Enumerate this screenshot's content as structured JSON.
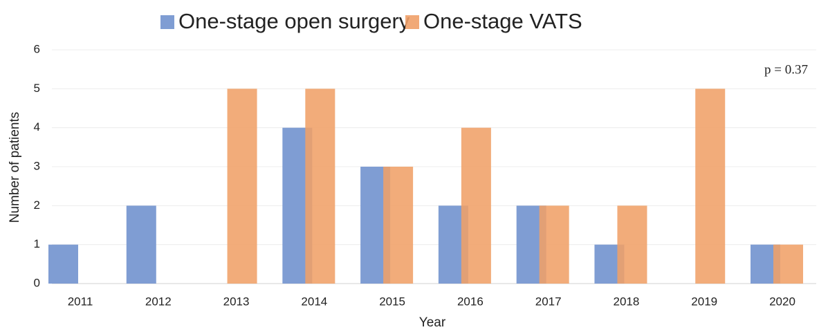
{
  "chart_data": {
    "type": "bar",
    "x_label": "Year",
    "y_label": "Number of patients",
    "annotation": "p = 0.37",
    "categories": [
      "2011",
      "2012",
      "2013",
      "2014",
      "2015",
      "2016",
      "2017",
      "2018",
      "2019",
      "2020"
    ],
    "series": [
      {
        "name": "One-stage open surgery",
        "color": "#7f9dd3",
        "values": [
          1,
          2,
          0,
          4,
          3,
          2,
          2,
          1,
          0,
          1
        ]
      },
      {
        "name": "One-stage VATS",
        "color": "#f0a068",
        "values": [
          0,
          0,
          5,
          5,
          3,
          4,
          2,
          2,
          5,
          1
        ]
      }
    ],
    "ylim": [
      0,
      6
    ],
    "yticks": [
      0,
      1,
      2,
      3,
      4,
      5,
      6
    ],
    "grid": true,
    "legend": "top"
  }
}
